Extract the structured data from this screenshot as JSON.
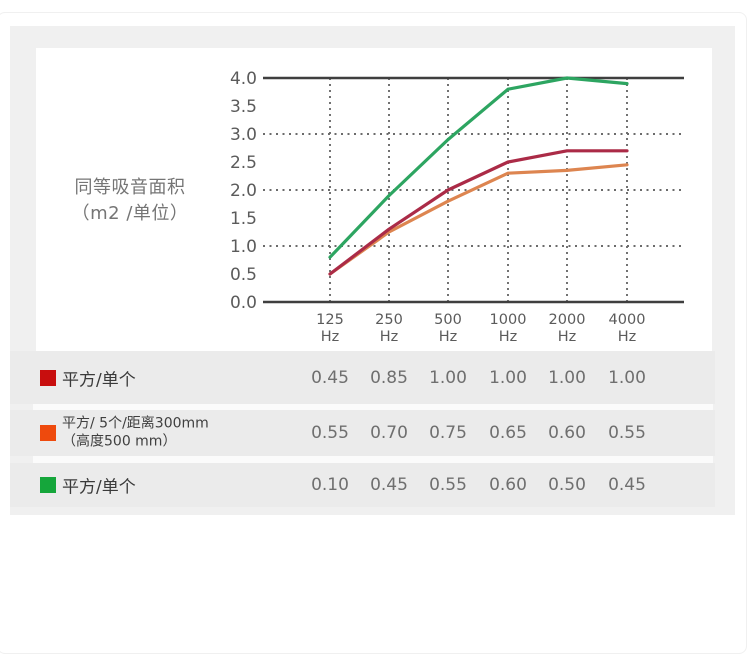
{
  "colors": {
    "card_bg": "#f0f0f0",
    "row_bg": "#ebebeb",
    "panel_bg": "#ffffff",
    "axis": "#3f3f3f",
    "grid": "#6b6b6b",
    "tick_text": "#5b5b5b"
  },
  "chart": {
    "ylabel_line1": "同等吸音面积",
    "ylabel_line2": "（m2 /单位）",
    "y_ticks": [
      "4.0",
      "3.5",
      "3.0",
      "2.5",
      "2.0",
      "1.5",
      "1.0",
      "0.5",
      "0.0"
    ],
    "x_ticks": [
      {
        "freq": "125",
        "unit": "Hz"
      },
      {
        "freq": "250",
        "unit": "Hz"
      },
      {
        "freq": "500",
        "unit": "Hz"
      },
      {
        "freq": "1000",
        "unit": "Hz"
      },
      {
        "freq": "2000",
        "unit": "Hz"
      },
      {
        "freq": "4000",
        "unit": "Hz"
      }
    ]
  },
  "chart_data": {
    "type": "line",
    "title": "",
    "xlabel": "",
    "ylabel": "同等吸音面积（m2 /单位）",
    "categories": [
      "125 Hz",
      "250 Hz",
      "500 Hz",
      "1000 Hz",
      "2000 Hz",
      "4000 Hz"
    ],
    "ylim": [
      0.0,
      4.0
    ],
    "y_tick_step": 0.5,
    "grid": "dashed horizontal lines at 1.0 / 2.0 / 3.0, dashed vertical line at each frequency, solid lines at 0.0 and 4.0",
    "legend_position": "table below chart",
    "series": [
      {
        "name": "平方/单个",
        "color": "#ab2b47",
        "values": [
          0.5,
          1.3,
          2.0,
          2.5,
          2.7,
          2.7
        ]
      },
      {
        "name": "平方/ 5个/距离300mm（高度500 mm）",
        "color": "#dd8550",
        "values": [
          0.5,
          1.25,
          1.8,
          2.3,
          2.35,
          2.45
        ]
      },
      {
        "name": "平方/单个",
        "color": "#2da561",
        "values": [
          0.8,
          1.9,
          2.9,
          3.8,
          4.0,
          3.9
        ]
      }
    ]
  },
  "table": {
    "rows": [
      {
        "swatch_color": "#c80e0e",
        "label": "平方/单个",
        "label_line2": "",
        "values": [
          "0.45",
          "0.85",
          "1.00",
          "1.00",
          "1.00",
          "1.00"
        ]
      },
      {
        "swatch_color": "#ee4a0d",
        "label": "平方/ 5个/距离300mm",
        "label_line2": "（高度500 mm）",
        "values": [
          "0.55",
          "0.70",
          "0.75",
          "0.65",
          "0.60",
          "0.55"
        ]
      },
      {
        "swatch_color": "#15a63b",
        "label": "平方/单个",
        "label_line2": "",
        "values": [
          "0.10",
          "0.45",
          "0.55",
          "0.60",
          "0.50",
          "0.45"
        ]
      }
    ]
  }
}
